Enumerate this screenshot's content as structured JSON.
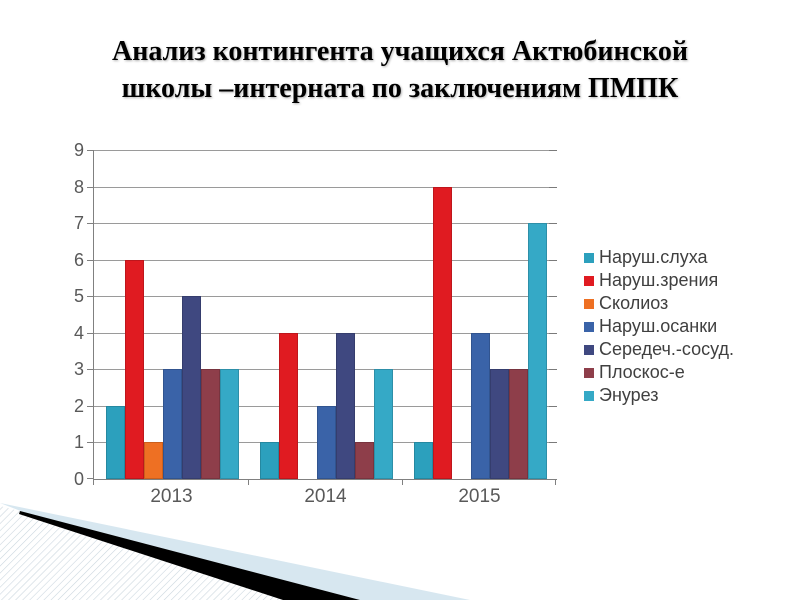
{
  "header": {
    "title_lines": [
      "Анализ контингента учащихся Актюбинской",
      "школы –интерната по заключениям ПМПК"
    ]
  },
  "chart_data": {
    "type": "bar",
    "title": "",
    "categories": [
      "2013",
      "2014",
      "2015"
    ],
    "series": [
      {
        "name": "Наруш.слуха",
        "color": "#2CA0BD",
        "values": [
          2,
          1,
          1
        ]
      },
      {
        "name": "Наруш.зрения",
        "color": "#E01B21",
        "values": [
          6,
          4,
          8
        ]
      },
      {
        "name": "Сколиоз",
        "color": "#EE7023",
        "values": [
          1,
          0,
          0
        ]
      },
      {
        "name": "Наруш.осанки",
        "color": "#3A63A8",
        "values": [
          3,
          2,
          4
        ]
      },
      {
        "name": "Середеч.-сосуд.",
        "color": "#3F4880",
        "values": [
          5,
          4,
          3
        ]
      },
      {
        "name": "Плоскос-е",
        "color": "#8E3E4A",
        "values": [
          3,
          1,
          3
        ]
      },
      {
        "name": "Энурез",
        "color": "#35A9C6",
        "values": [
          3,
          3,
          7
        ]
      }
    ],
    "xlabel": "",
    "ylabel": "",
    "ylim": [
      0,
      9
    ],
    "ytick_step": 1,
    "grid": true,
    "legend_position": "right",
    "colors": {
      "axis": "#808080",
      "gridline": "#9A9A9A",
      "axis_label": "#595959",
      "legend_text": "#404040"
    }
  },
  "decoration": {
    "swoosh_color": "#000000",
    "accent_blue": "#D7E7F0",
    "pinstripe_color": "#C9D5DD"
  }
}
